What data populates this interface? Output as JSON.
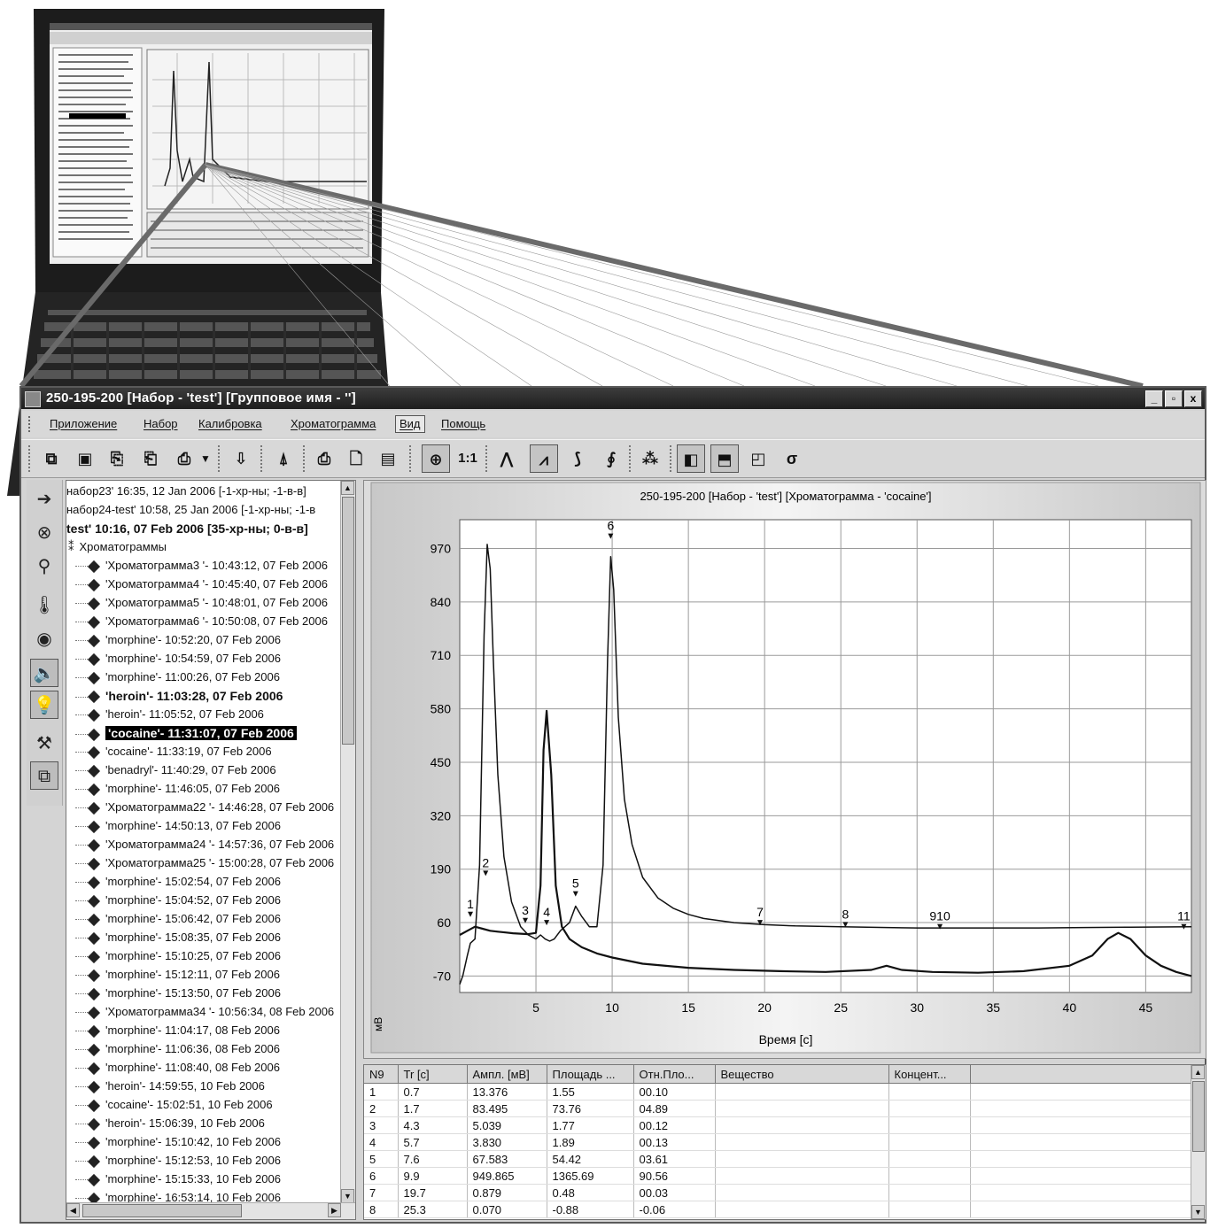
{
  "window": {
    "title": "250-195-200 [Набор - 'test'] [Групповое имя - '']",
    "buttons": [
      "_",
      "▫",
      "x"
    ]
  },
  "menu": [
    "Приложение",
    "Набор",
    "Калибровка",
    "Хроматограмма",
    "Вид",
    "Помощь"
  ],
  "toolbar": {
    "zoom_label": "1:1",
    "icons": [
      "new-set-icon",
      "save-icon",
      "copy-icon",
      "paste-icon",
      "export-icon",
      "dropdown-arrow-icon",
      "import-icon",
      "pump-icon",
      "print-icon",
      "print-preview-icon",
      "report-icon",
      "zoom-icon",
      "one-to-one-icon",
      "peak-icon",
      "peak-labels-icon",
      "calibration-icon",
      "integrate-icon",
      "compare-icon",
      "layout-left-icon",
      "layout-bottom-icon",
      "layout-corner-icon",
      "sigma-icon"
    ]
  },
  "vtoolbar": {
    "icons": [
      "arrow-right-icon",
      "stop-icon",
      "needle-icon",
      "thermometer-icon",
      "eye-icon",
      "speaker-icon",
      "lamp-icon",
      "wrench-icon",
      "windows-icon"
    ]
  },
  "tree": {
    "rows": [
      {
        "text": "набор23' 16:35, 12 Jan 2006 [-1-хр-ны; -1-в-в]",
        "style": "top"
      },
      {
        "text": "набор24-test' 10:58, 25 Jan 2006 [-1-хр-ны; -1-в",
        "style": "top"
      },
      {
        "text": "test' 10:16, 07 Feb 2006 [35-хр-ны; 0-в-в]",
        "style": "topbold"
      },
      {
        "text": "Хроматограммы",
        "style": "folder"
      },
      {
        "text": "'Хроматограмма3 '- 10:43:12, 07 Feb 2006",
        "style": "item"
      },
      {
        "text": "'Хроматограмма4 '- 10:45:40, 07 Feb 2006",
        "style": "item"
      },
      {
        "text": "'Хроматограмма5 '- 10:48:01, 07 Feb 2006",
        "style": "item"
      },
      {
        "text": "'Хроматограмма6 '- 10:50:08, 07 Feb 2006",
        "style": "item"
      },
      {
        "text": "'morphine'- 10:52:20, 07 Feb 2006",
        "style": "item"
      },
      {
        "text": "'morphine'- 10:54:59, 07 Feb 2006",
        "style": "item"
      },
      {
        "text": "'morphine'- 11:00:26, 07 Feb 2006",
        "style": "item"
      },
      {
        "text": "'heroin'- 11:03:28, 07 Feb 2006",
        "style": "bold"
      },
      {
        "text": "'heroin'- 11:05:52, 07 Feb 2006",
        "style": "item"
      },
      {
        "text": "'cocaine'- 11:31:07, 07 Feb 2006",
        "style": "selected"
      },
      {
        "text": "'cocaine'- 11:33:19, 07 Feb 2006",
        "style": "item"
      },
      {
        "text": "'benadryl'- 11:40:29, 07 Feb 2006",
        "style": "item"
      },
      {
        "text": "'morphine'- 11:46:05, 07 Feb 2006",
        "style": "item"
      },
      {
        "text": "'Хроматограмма22 '- 14:46:28, 07 Feb 2006",
        "style": "item"
      },
      {
        "text": "'morphine'- 14:50:13, 07 Feb 2006",
        "style": "item"
      },
      {
        "text": "'Хроматограмма24 '- 14:57:36, 07 Feb 2006",
        "style": "item"
      },
      {
        "text": "'Хроматограмма25 '- 15:00:28, 07 Feb 2006",
        "style": "item"
      },
      {
        "text": "'morphine'- 15:02:54, 07 Feb 2006",
        "style": "item"
      },
      {
        "text": "'morphine'- 15:04:52, 07 Feb 2006",
        "style": "item"
      },
      {
        "text": "'morphine'- 15:06:42, 07 Feb 2006",
        "style": "item"
      },
      {
        "text": "'morphine'- 15:08:35, 07 Feb 2006",
        "style": "item"
      },
      {
        "text": "'morphine'- 15:10:25, 07 Feb 2006",
        "style": "item"
      },
      {
        "text": "'morphine'- 15:12:11, 07 Feb 2006",
        "style": "item"
      },
      {
        "text": "'morphine'- 15:13:50, 07 Feb 2006",
        "style": "item"
      },
      {
        "text": "'Хроматограмма34 '- 10:56:34, 08 Feb 2006",
        "style": "item"
      },
      {
        "text": "'morphine'- 11:04:17, 08 Feb 2006",
        "style": "item"
      },
      {
        "text": "'morphine'- 11:06:36, 08 Feb 2006",
        "style": "item"
      },
      {
        "text": "'morphine'- 11:08:40, 08 Feb 2006",
        "style": "item"
      },
      {
        "text": "'heroin'- 14:59:55, 10 Feb 2006",
        "style": "item"
      },
      {
        "text": "'cocaine'- 15:02:51, 10 Feb 2006",
        "style": "item"
      },
      {
        "text": "'heroin'- 15:06:39, 10 Feb 2006",
        "style": "item"
      },
      {
        "text": "'morphine'- 15:10:42, 10 Feb 2006",
        "style": "item"
      },
      {
        "text": "'morphine'- 15:12:53, 10 Feb 2006",
        "style": "item"
      },
      {
        "text": "'morphine'- 15:15:33, 10 Feb 2006",
        "style": "item"
      },
      {
        "text": "'morphine'- 16:53:14, 10 Feb 2006",
        "style": "item"
      }
    ]
  },
  "chart_data": {
    "type": "line",
    "title": "250-195-200 [Набор - 'test'] [Хроматограмма - 'cocaine']",
    "xlabel": "Время [с]",
    "ylabel": "мВ",
    "xlim": [
      0,
      48
    ],
    "ylim": [
      -110,
      1040
    ],
    "x_ticks": [
      5,
      10,
      15,
      20,
      25,
      30,
      35,
      40,
      45
    ],
    "y_ticks": [
      -70,
      60,
      190,
      320,
      450,
      580,
      710,
      840,
      970
    ],
    "grid": true,
    "series": [
      {
        "x": [
          0,
          0.2,
          0.5,
          0.7,
          1.0,
          1.3,
          1.6,
          1.8,
          2.0,
          2.2,
          2.5,
          2.9,
          3.4,
          4.0,
          4.5,
          5.0,
          5.3,
          5.6,
          5.9,
          6.2,
          6.6,
          7.2,
          7.6,
          8.0,
          8.5,
          9.0,
          9.4,
          9.7,
          9.9,
          10.1,
          10.4,
          10.8,
          11.3,
          12,
          13,
          14,
          15,
          16,
          18,
          20,
          22,
          25,
          28,
          30,
          32,
          35,
          38,
          41,
          44,
          48
        ],
        "y": [
          -90,
          -70,
          -20,
          10,
          20,
          200,
          760,
          980,
          920,
          700,
          420,
          220,
          110,
          50,
          30,
          20,
          30,
          20,
          15,
          20,
          40,
          60,
          100,
          75,
          50,
          50,
          200,
          700,
          950,
          870,
          560,
          360,
          250,
          170,
          120,
          95,
          80,
          70,
          60,
          55,
          52,
          50,
          48,
          47,
          47,
          47,
          47,
          48,
          49,
          50
        ]
      },
      {
        "x": [
          0,
          0.5,
          1.0,
          1.5,
          2.0,
          2.5,
          3.0,
          3.5,
          4.0,
          4.5,
          5.0,
          5.3,
          5.5,
          5.7,
          6.0,
          6.3,
          6.7,
          7.2,
          8,
          9,
          10,
          12,
          15,
          18,
          21,
          24,
          27,
          28,
          29,
          31,
          34,
          37,
          40,
          41.5,
          42.5,
          43.2,
          44,
          45,
          46,
          47,
          48
        ],
        "y": [
          30,
          40,
          50,
          45,
          40,
          38,
          36,
          34,
          33,
          32,
          35,
          150,
          480,
          575,
          420,
          150,
          50,
          20,
          0,
          -15,
          -25,
          -40,
          -50,
          -55,
          -58,
          -60,
          -55,
          -45,
          -55,
          -60,
          -62,
          -58,
          -45,
          -20,
          20,
          35,
          20,
          -20,
          -45,
          -60,
          -70
        ]
      }
    ],
    "peak_labels": [
      {
        "text": "1",
        "x": 0.7,
        "y": 95
      },
      {
        "text": "2",
        "x": 1.7,
        "y": 195
      },
      {
        "text": "3",
        "x": 4.3,
        "y": 80
      },
      {
        "text": "4",
        "x": 5.7,
        "y": 75
      },
      {
        "text": "5",
        "x": 7.6,
        "y": 145
      },
      {
        "text": "6",
        "x": 9.9,
        "y": 1015
      },
      {
        "text": "7",
        "x": 19.7,
        "y": 75
      },
      {
        "text": "8",
        "x": 25.3,
        "y": 70
      },
      {
        "text": "910",
        "x": 31.5,
        "y": 65
      },
      {
        "text": "11",
        "x": 47.5,
        "y": 65
      }
    ]
  },
  "table": {
    "headers": [
      "N9",
      "Tr [c]",
      "Ампл. [мВ]",
      "Площадь ...",
      "Отн.Пло...",
      "Вещество",
      "Концент..."
    ],
    "rows": [
      [
        "1",
        "0.7",
        "13.376",
        "1.55",
        "00.10",
        "",
        ""
      ],
      [
        "2",
        "1.7",
        "83.495",
        "73.76",
        "04.89",
        "",
        ""
      ],
      [
        "3",
        "4.3",
        "5.039",
        "1.77",
        "00.12",
        "",
        ""
      ],
      [
        "4",
        "5.7",
        "3.830",
        "1.89",
        "00.13",
        "",
        ""
      ],
      [
        "5",
        "7.6",
        "67.583",
        "54.42",
        "03.61",
        "",
        ""
      ],
      [
        "6",
        "9.9",
        "949.865",
        "1365.69",
        "90.56",
        "",
        ""
      ],
      [
        "7",
        "19.7",
        "0.879",
        "0.48",
        "00.03",
        "",
        ""
      ],
      [
        "8",
        "25.3",
        "0.070",
        "-0.88",
        "-0.06",
        "",
        ""
      ]
    ]
  }
}
